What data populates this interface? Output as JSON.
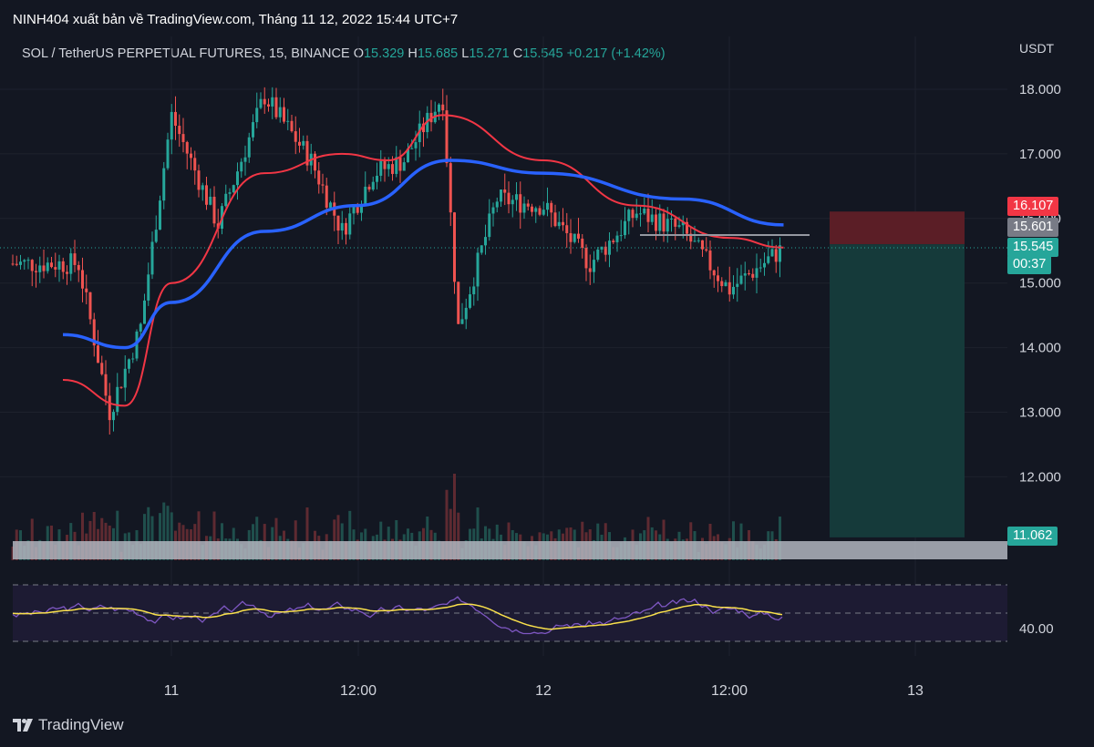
{
  "header": {
    "publisher": "NINH404 xuất bản về TradingView.com, Tháng 11 12, 2022 15:44 UTC+7"
  },
  "symbol": {
    "name": "SOL / TetherUS PERPETUAL FUTURES, 15, BINANCE",
    "open_label": "O",
    "open": "15.329",
    "high_label": "H",
    "high": "15.685",
    "low_label": "L",
    "low": "15.271",
    "close_label": "C",
    "close": "15.545",
    "change": "+0.217 (+1.42%)"
  },
  "price_axis": {
    "unit": "USDT",
    "ticks": [
      "18.000",
      "17.000",
      "16.000",
      "15.000",
      "14.000",
      "13.000",
      "12.000"
    ]
  },
  "rsi_axis": {
    "ticks": [
      "40.00"
    ]
  },
  "time_axis": {
    "ticks": [
      "11",
      "12:00",
      "12",
      "12:00",
      "13"
    ]
  },
  "badges": {
    "stop": "16.107",
    "entry": "15.601",
    "price": "15.545",
    "countdown": "00:37",
    "target": "11.062"
  },
  "colors": {
    "background": "#131722",
    "up": "#26a69a",
    "down": "#ef5350",
    "ema_fast": "#f23645",
    "ema_slow": "#2962ff",
    "rsi": "#7e57c2",
    "rsi_ma": "#f9e04b",
    "stop_zone": "#5b1e26",
    "target_zone": "#153a3a"
  },
  "brand": {
    "name": "TradingView"
  },
  "chart_data": {
    "type": "candlestick",
    "timeframe": "15",
    "ylim": [
      10.4,
      18.8
    ],
    "x": [
      "11",
      "12:00",
      "12",
      "12:00",
      "13"
    ],
    "close_series": [
      {
        "t": "Nov 10 18:00",
        "v": 15.3
      },
      {
        "t": "Nov 10 20:00",
        "v": 13.0
      },
      {
        "t": "Nov 10 22:00",
        "v": 14.3
      },
      {
        "t": "Nov 11 00:00",
        "v": 17.6
      },
      {
        "t": "Nov 11 03:00",
        "v": 15.9
      },
      {
        "t": "Nov 11 06:00",
        "v": 17.9
      },
      {
        "t": "Nov 11 09:00",
        "v": 16.9
      },
      {
        "t": "Nov 11 11:00",
        "v": 15.8
      },
      {
        "t": "Nov 11 13:00",
        "v": 16.7
      },
      {
        "t": "Nov 11 15:00",
        "v": 16.9
      },
      {
        "t": "Nov 11 17:30",
        "v": 17.9
      },
      {
        "t": "Nov 11 18:30",
        "v": 14.3
      },
      {
        "t": "Nov 11 21:00",
        "v": 16.3
      },
      {
        "t": "Nov 12 00:00",
        "v": 16.2
      },
      {
        "t": "Nov 12 03:00",
        "v": 15.3
      },
      {
        "t": "Nov 12 06:00",
        "v": 16.1
      },
      {
        "t": "Nov 12 09:00",
        "v": 15.8
      },
      {
        "t": "Nov 12 12:00",
        "v": 14.9
      },
      {
        "t": "Nov 12 15:30",
        "v": 15.545
      }
    ],
    "ema_fast": [
      {
        "t": "Nov 10 17:00",
        "v": 13.5
      },
      {
        "t": "Nov 10 21:00",
        "v": 13.1
      },
      {
        "t": "Nov 11 00:00",
        "v": 15.0
      },
      {
        "t": "Nov 11 06:00",
        "v": 16.7
      },
      {
        "t": "Nov 11 11:00",
        "v": 17.0
      },
      {
        "t": "Nov 11 14:00",
        "v": 16.9
      },
      {
        "t": "Nov 11 17:30",
        "v": 17.6
      },
      {
        "t": "Nov 12 00:00",
        "v": 16.9
      },
      {
        "t": "Nov 12 06:00",
        "v": 16.2
      },
      {
        "t": "Nov 12 12:00",
        "v": 15.7
      },
      {
        "t": "Nov 12 15:30",
        "v": 15.55
      }
    ],
    "ema_slow": [
      {
        "t": "Nov 10 17:00",
        "v": 14.2
      },
      {
        "t": "Nov 10 21:00",
        "v": 14.0
      },
      {
        "t": "Nov 11 00:00",
        "v": 14.7
      },
      {
        "t": "Nov 11 06:00",
        "v": 15.8
      },
      {
        "t": "Nov 11 12:00",
        "v": 16.2
      },
      {
        "t": "Nov 11 18:00",
        "v": 16.9
      },
      {
        "t": "Nov 12 00:00",
        "v": 16.7
      },
      {
        "t": "Nov 12 09:00",
        "v": 16.3
      },
      {
        "t": "Nov 12 15:30",
        "v": 15.9
      }
    ],
    "levels": {
      "stop": 16.107,
      "entry": 15.601,
      "last": 15.545,
      "target": 11.062
    },
    "rsi_level": 40.0,
    "xlabel": "",
    "ylabel": ""
  }
}
